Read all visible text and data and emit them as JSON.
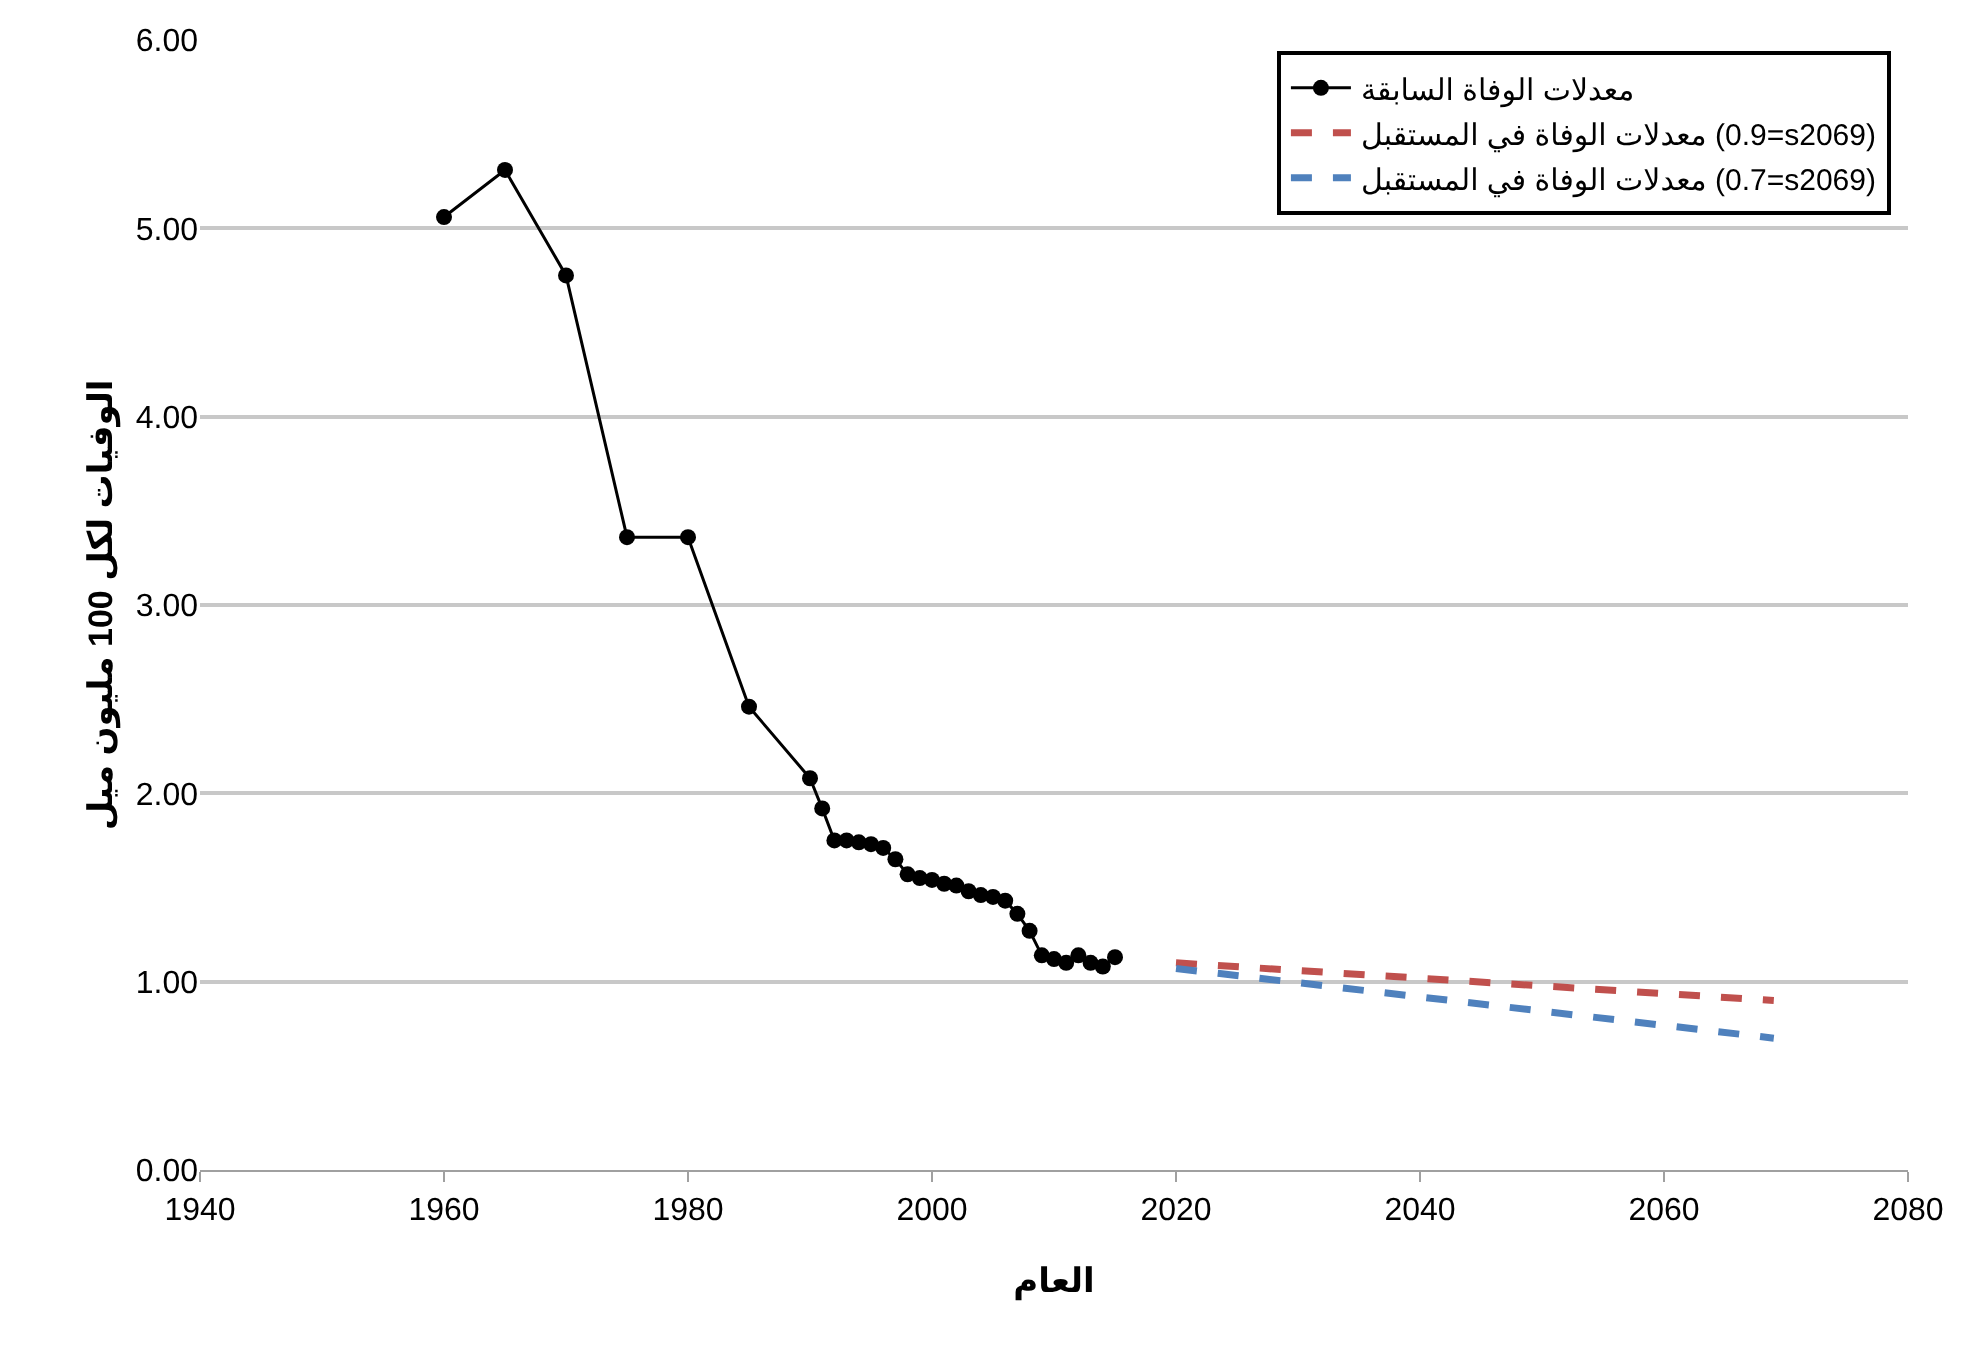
{
  "chart_data": {
    "type": "line",
    "xlabel": "العام",
    "ylabel": "الوفيات لكل 100 مليون ميل",
    "xlim": [
      1940,
      2080
    ],
    "xticks": [
      1940,
      1960,
      1980,
      2000,
      2020,
      2040,
      2060,
      2080
    ],
    "ylim": [
      0,
      6
    ],
    "yticks": [
      {
        "value": 0,
        "label": "0.00"
      },
      {
        "value": 1,
        "label": "1.00"
      },
      {
        "value": 2,
        "label": "2.00"
      },
      {
        "value": 3,
        "label": "3.00"
      },
      {
        "value": 4,
        "label": "4.00"
      },
      {
        "value": 5,
        "label": "5.00"
      },
      {
        "value": 6,
        "label": "6.00"
      }
    ],
    "grid": "y",
    "legend": "top right",
    "series": [
      {
        "name": "معدلات الوفاة السابقة",
        "color": "#000000",
        "marker": "circle",
        "line_style": "solid",
        "x": [
          1960,
          1965,
          1970,
          1975,
          1980,
          1985,
          1990,
          1991,
          1992,
          1993,
          1994,
          1995,
          1996,
          1997,
          1998,
          1999,
          2000,
          2001,
          2002,
          2003,
          2004,
          2005,
          2006,
          2007,
          2008,
          2009,
          2010,
          2011,
          2012,
          2013,
          2014,
          2015
        ],
        "values": [
          5.06,
          5.31,
          4.75,
          3.36,
          3.36,
          2.46,
          2.08,
          1.92,
          1.75,
          1.75,
          1.74,
          1.73,
          1.71,
          1.65,
          1.57,
          1.55,
          1.54,
          1.52,
          1.51,
          1.48,
          1.46,
          1.45,
          1.43,
          1.36,
          1.27,
          1.14,
          1.12,
          1.1,
          1.14,
          1.1,
          1.08,
          1.13
        ]
      },
      {
        "name": "معدلات الوفاة في المستقبل (0.9=s2069)",
        "color": "#c0504d",
        "marker": "none",
        "line_style": "dashed",
        "x": [
          2020,
          2069
        ],
        "values": [
          1.1,
          0.9
        ]
      },
      {
        "name": "معدلات الوفاة في المستقبل (0.7=s2069)",
        "color": "#4f81bd",
        "marker": "none",
        "line_style": "dashed",
        "x": [
          2020,
          2069
        ],
        "values": [
          1.07,
          0.7
        ]
      }
    ]
  }
}
